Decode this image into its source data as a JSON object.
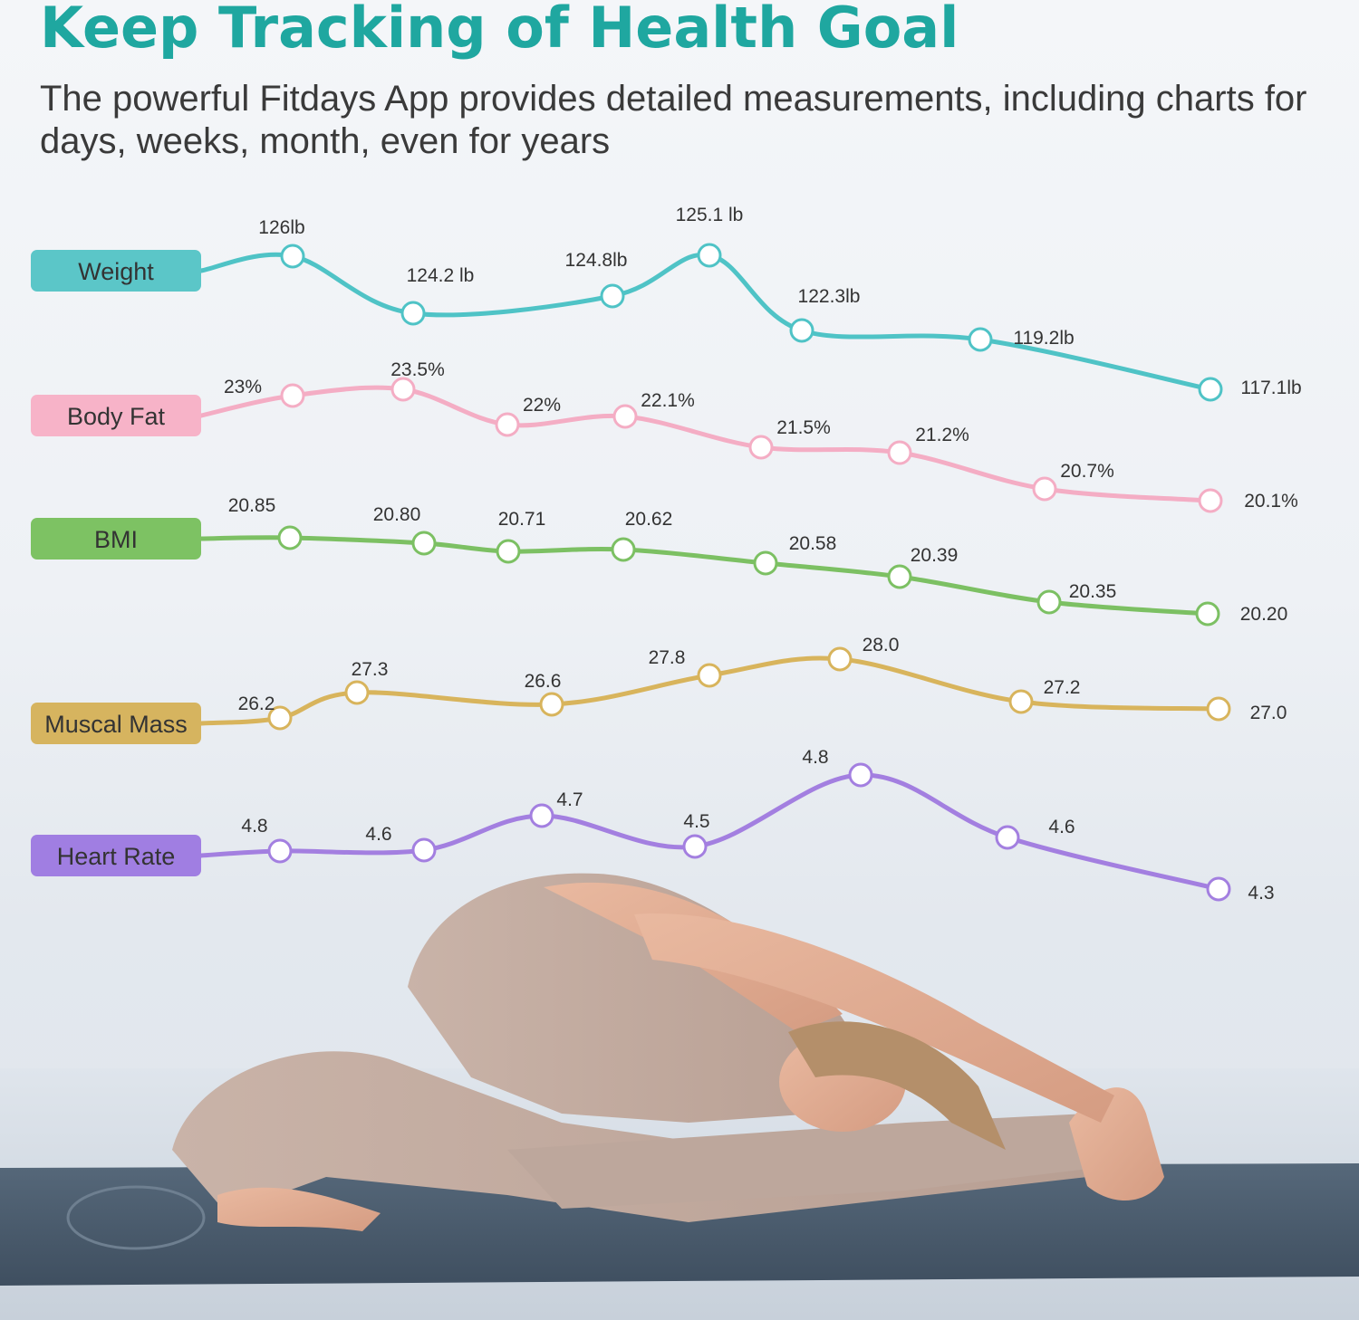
{
  "header": {
    "title": "Keep Tracking of Health Goal",
    "subtitle": "The powerful Fitdays App provides detailed measurements, including charts for days, weeks, month, even for years"
  },
  "chart_data": [
    {
      "type": "line",
      "name": "Weight",
      "color": "#4fc3c6",
      "label_bg": "#5bc6c8",
      "values": [
        126,
        124.2,
        124.8,
        125.1,
        122.3,
        119.2,
        117.1
      ],
      "labels": [
        "126lb",
        "124.2 lb",
        "124.8lb",
        "125.1 lb",
        "122.3lb",
        "119.2lb",
        "117.1lb"
      ]
    },
    {
      "type": "line",
      "name": "Body Fat",
      "color": "#f4adc4",
      "label_bg": "#f7b3c8",
      "values": [
        23,
        23.5,
        22,
        22.1,
        21.5,
        21.2,
        20.7,
        20.1
      ],
      "labels": [
        "23%",
        "23.5%",
        "22%",
        "22.1%",
        "21.5%",
        "21.2%",
        "20.7%",
        "20.1%"
      ]
    },
    {
      "type": "line",
      "name": "BMI",
      "color": "#7cc063",
      "label_bg": "#7dc263",
      "values": [
        20.85,
        20.8,
        20.71,
        20.62,
        20.58,
        20.39,
        20.35,
        20.2
      ],
      "labels": [
        "20.85",
        "20.80",
        "20.71",
        "20.62",
        "20.58",
        "20.39",
        "20.35",
        "20.20"
      ]
    },
    {
      "type": "line",
      "name": "Muscal Mass",
      "color": "#d8b45c",
      "label_bg": "#d6b45f",
      "values": [
        26.2,
        27.3,
        26.6,
        27.8,
        28.0,
        27.2,
        27.0
      ],
      "labels": [
        "26.2",
        "27.3",
        "26.6",
        "27.8",
        "28.0",
        "27.2",
        "27.0"
      ]
    },
    {
      "type": "line",
      "name": "Heart Rate",
      "color": "#a37fe0",
      "label_bg": "#a07ee2",
      "values": [
        4.8,
        4.6,
        4.7,
        4.5,
        4.8,
        4.6,
        4.3
      ],
      "labels": [
        "4.8",
        "4.6",
        "4.7",
        "4.5",
        "4.8",
        "4.6",
        "4.3"
      ]
    }
  ]
}
